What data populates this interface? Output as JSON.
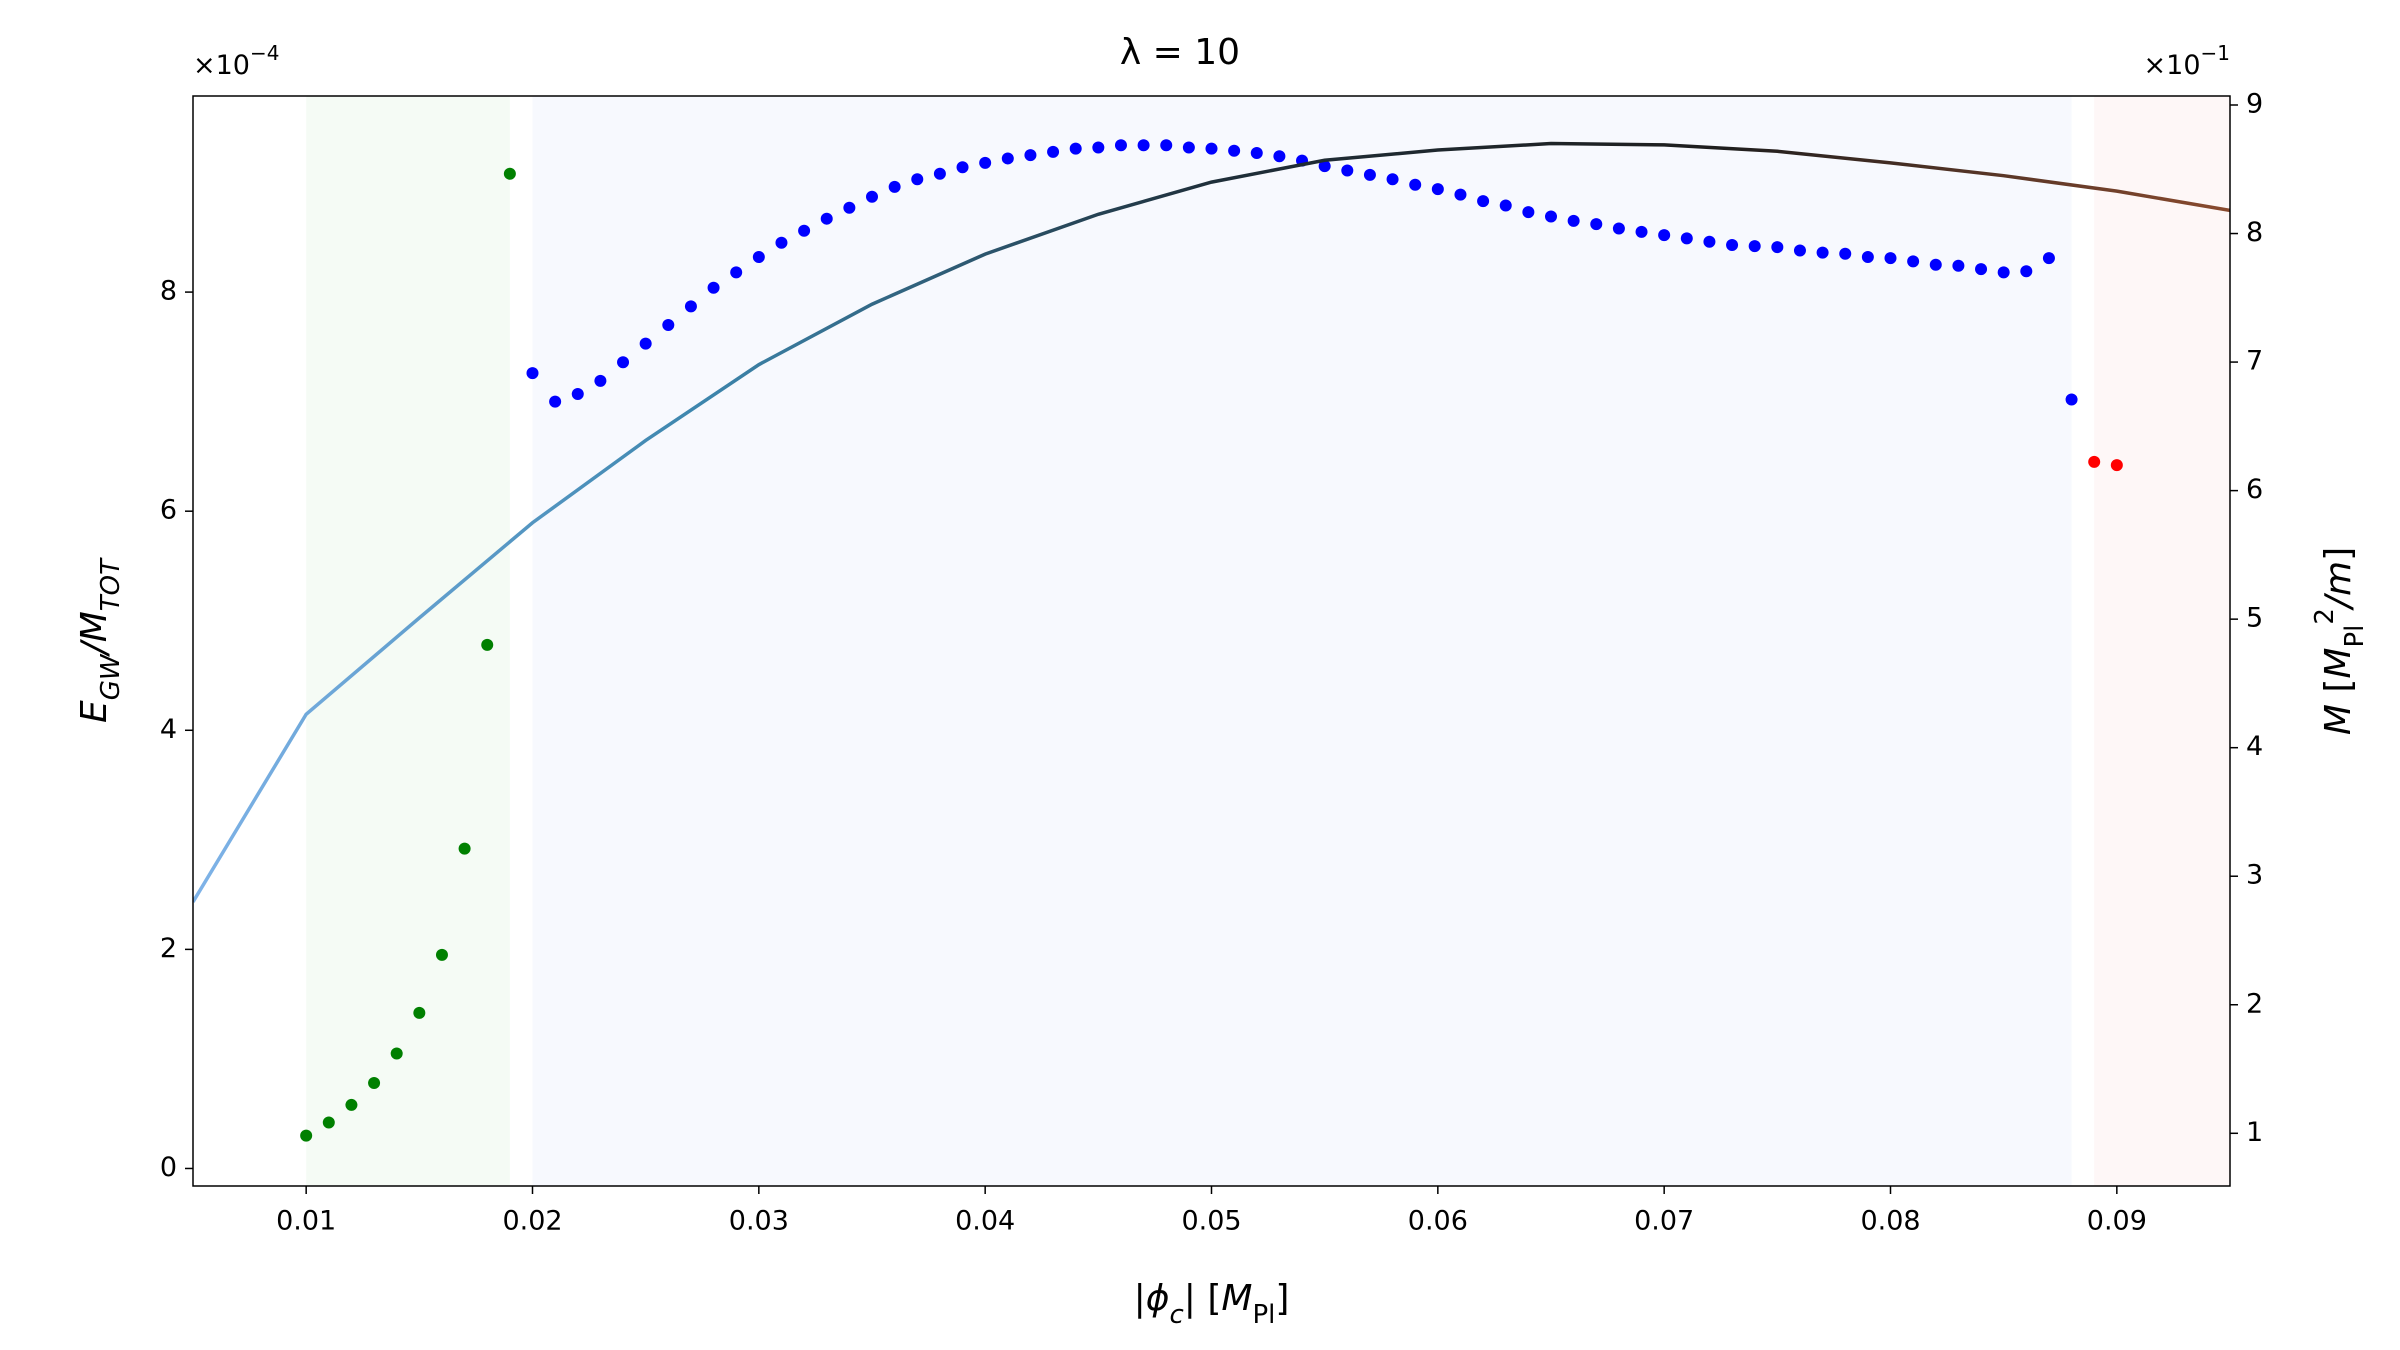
{
  "chart_data": {
    "type": "scatter",
    "title": "λ = 10",
    "xlabel": [
      {
        "t": "|"
      },
      {
        "t": "ϕ",
        "italic": true
      },
      {
        "t": "c",
        "italic": true,
        "sub": true
      },
      {
        "t": "| ["
      },
      {
        "t": "M",
        "italic": true
      },
      {
        "t": "Pl",
        "sub": true
      },
      {
        "t": "]"
      }
    ],
    "ylabel": [
      {
        "t": "E",
        "italic": true
      },
      {
        "t": "GW",
        "italic": true,
        "sub": true
      },
      {
        "t": "/M",
        "italic": true
      },
      {
        "t": "TOT",
        "italic": true,
        "sub": true
      }
    ],
    "y2label": [
      {
        "t": "M",
        "italic": true
      },
      {
        "t": " ["
      },
      {
        "t": "M",
        "italic": true
      },
      {
        "t": "Pl",
        "sub": true
      },
      {
        "t": "2",
        "sup": true
      },
      {
        "t": "/m",
        "italic": true
      },
      {
        "t": "]"
      }
    ],
    "y2label_color": "#800080",
    "y_offset": {
      "base": "×10",
      "exponent": "−4"
    },
    "y2_offset": {
      "base": "×10",
      "exponent": "−1"
    },
    "xlim": [
      0.005,
      0.095
    ],
    "xticks": [
      0.01,
      0.02,
      0.03,
      0.04,
      0.05,
      0.06,
      0.07,
      0.08,
      0.09
    ],
    "ylim": [
      -0.16,
      9.79
    ],
    "yticks": [
      0,
      2,
      4,
      6,
      8
    ],
    "y2lim": [
      0.59,
      9.07
    ],
    "y2ticks": [
      1,
      2,
      3,
      4,
      5,
      6,
      7,
      8,
      9
    ],
    "regions": [
      {
        "x0": 0.01,
        "x1": 0.019,
        "color": "rgba(0,160,0,0.04)"
      },
      {
        "x0": 0.02,
        "x1": 0.088,
        "color": "rgba(40,80,220,0.035)"
      },
      {
        "x0": 0.089,
        "x1": 0.095,
        "color": "rgba(220,40,40,0.035)"
      }
    ],
    "series": [
      {
        "color": "#008000",
        "x": [
          0.01,
          0.011,
          0.012,
          0.013,
          0.014,
          0.015,
          0.016,
          0.017,
          0.018,
          0.019
        ],
        "values": [
          0.3,
          0.42,
          0.58,
          0.78,
          1.05,
          1.42,
          1.95,
          2.92,
          4.78,
          9.08
        ]
      },
      {
        "color": "#0000ff",
        "x": [
          0.02,
          0.021,
          0.022,
          0.023,
          0.024,
          0.025,
          0.026,
          0.027,
          0.028,
          0.029,
          0.03,
          0.031,
          0.032,
          0.033,
          0.034,
          0.035,
          0.036,
          0.037,
          0.038,
          0.039,
          0.04,
          0.041,
          0.042,
          0.043,
          0.044,
          0.045,
          0.046,
          0.047,
          0.048,
          0.049,
          0.05,
          0.051,
          0.052,
          0.053,
          0.054,
          0.055,
          0.056,
          0.057,
          0.058,
          0.059,
          0.06,
          0.061,
          0.062,
          0.063,
          0.064,
          0.065,
          0.066,
          0.067,
          0.068,
          0.069,
          0.07,
          0.071,
          0.072,
          0.073,
          0.074,
          0.075,
          0.076,
          0.077,
          0.078,
          0.079,
          0.08,
          0.081,
          0.082,
          0.083,
          0.084,
          0.085,
          0.086,
          0.087,
          0.088
        ],
        "values": [
          7.26,
          7.0,
          7.07,
          7.19,
          7.36,
          7.53,
          7.7,
          7.87,
          8.04,
          8.18,
          8.32,
          8.45,
          8.56,
          8.67,
          8.77,
          8.87,
          8.96,
          9.03,
          9.08,
          9.14,
          9.18,
          9.22,
          9.25,
          9.28,
          9.31,
          9.32,
          9.34,
          9.34,
          9.34,
          9.32,
          9.31,
          9.29,
          9.27,
          9.24,
          9.2,
          9.15,
          9.11,
          9.07,
          9.03,
          8.98,
          8.94,
          8.89,
          8.83,
          8.79,
          8.73,
          8.69,
          8.65,
          8.62,
          8.58,
          8.55,
          8.52,
          8.49,
          8.46,
          8.43,
          8.42,
          8.41,
          8.38,
          8.36,
          8.35,
          8.32,
          8.31,
          8.28,
          8.25,
          8.24,
          8.21,
          8.18,
          8.19,
          8.31,
          7.02
        ]
      },
      {
        "color": "#ff0000",
        "x": [
          0.089,
          0.09
        ],
        "values": [
          6.45,
          6.42
        ]
      },
      {
        "type": "line",
        "axis": "y2",
        "gradient": [
          "#7fb3e8",
          "#3d86ad",
          "#1f2f3a",
          "#1e1e1e",
          "#8a4a2e"
        ],
        "x": [
          0.005,
          0.01,
          0.015,
          0.02,
          0.025,
          0.03,
          0.035,
          0.04,
          0.045,
          0.05,
          0.055,
          0.06,
          0.065,
          0.07,
          0.075,
          0.08,
          0.085,
          0.09,
          0.095
        ],
        "values": [
          2.8,
          4.26,
          5.01,
          5.75,
          6.39,
          6.98,
          7.45,
          7.84,
          8.15,
          8.4,
          8.57,
          8.65,
          8.7,
          8.69,
          8.64,
          8.55,
          8.45,
          8.33,
          8.18
        ]
      }
    ]
  }
}
